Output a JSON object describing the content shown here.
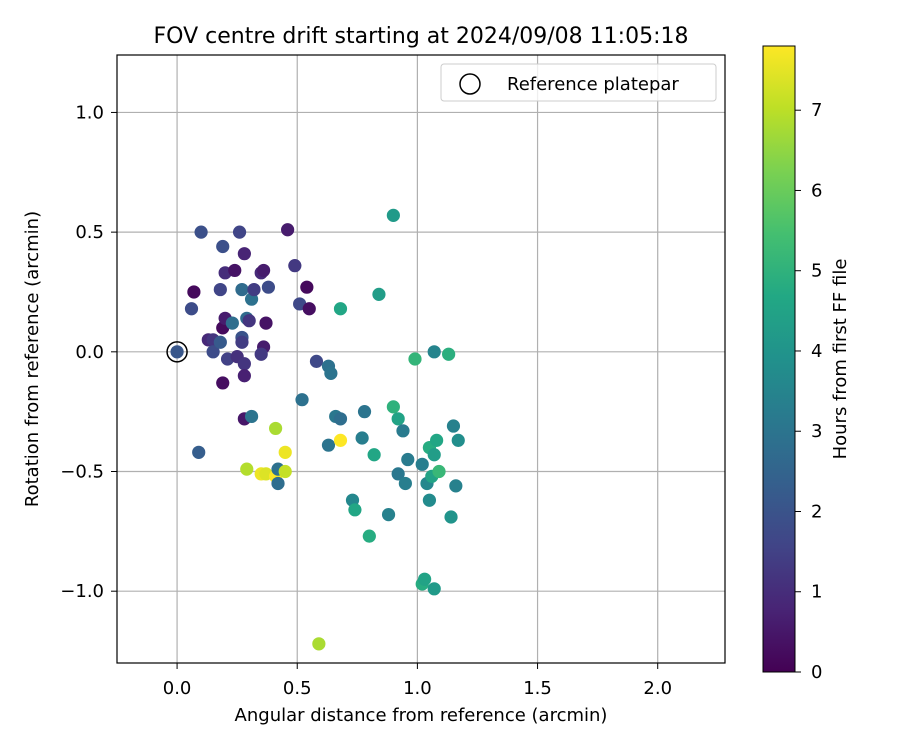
{
  "chart_data": {
    "type": "scatter",
    "title": "FOV centre drift starting at 2024/09/08 11:05:18",
    "xlabel": "Angular distance from reference (arcmin)",
    "ylabel": "Rotation from reference (arcmin)",
    "xlim": [
      -0.25,
      2.28
    ],
    "ylim": [
      -1.3,
      1.24
    ],
    "xticks": [
      0.0,
      0.5,
      1.0,
      1.5,
      2.0
    ],
    "xtick_labels": [
      "0.0",
      "0.5",
      "1.0",
      "1.5",
      "2.0"
    ],
    "yticks": [
      1.0,
      0.5,
      0.0,
      -0.5,
      -1.0
    ],
    "ytick_labels": [
      "1.0",
      "0.5",
      "0.0",
      "−0.5",
      "−1.0"
    ],
    "grid": true,
    "legend": {
      "placement": "top-right",
      "entries": [
        "Reference platepar"
      ]
    },
    "reference_point": {
      "x": 0.0,
      "y": 0.0
    },
    "colorbar": {
      "label": "Hours from first FF file",
      "colormap": "viridis",
      "range": [
        0,
        7.8
      ],
      "ticks": [
        0,
        1,
        2,
        3,
        4,
        5,
        6,
        7
      ],
      "tick_labels": [
        "0",
        "1",
        "2",
        "3",
        "4",
        "5",
        "6",
        "7"
      ]
    },
    "series": [
      {
        "points": [
          {
            "x": 0.0,
            "y": 0.0,
            "h": 2.1
          },
          {
            "x": 0.07,
            "y": 0.25,
            "h": 0.2
          },
          {
            "x": 0.06,
            "y": 0.18,
            "h": 1.8
          },
          {
            "x": 0.1,
            "y": 0.5,
            "h": 1.9
          },
          {
            "x": 0.13,
            "y": 0.05,
            "h": 0.9
          },
          {
            "x": 0.15,
            "y": 0.05,
            "h": 1.2
          },
          {
            "x": 0.15,
            "y": 0.0,
            "h": 1.8
          },
          {
            "x": 0.09,
            "y": -0.42,
            "h": 2.3
          },
          {
            "x": 0.18,
            "y": 0.26,
            "h": 1.6
          },
          {
            "x": 0.18,
            "y": 0.04,
            "h": 2.2
          },
          {
            "x": 0.19,
            "y": 0.44,
            "h": 1.9
          },
          {
            "x": 0.19,
            "y": 0.1,
            "h": 0.2
          },
          {
            "x": 0.2,
            "y": 0.14,
            "h": 0.6
          },
          {
            "x": 0.2,
            "y": 0.33,
            "h": 1.0
          },
          {
            "x": 0.19,
            "y": -0.13,
            "h": 0.3
          },
          {
            "x": 0.21,
            "y": -0.03,
            "h": 1.5
          },
          {
            "x": 0.23,
            "y": 0.12,
            "h": 2.8
          },
          {
            "x": 0.24,
            "y": 0.34,
            "h": 0.4
          },
          {
            "x": 0.26,
            "y": 0.5,
            "h": 1.6
          },
          {
            "x": 0.25,
            "y": -0.02,
            "h": 1.1
          },
          {
            "x": 0.27,
            "y": 0.26,
            "h": 2.7
          },
          {
            "x": 0.27,
            "y": 0.06,
            "h": 2.0
          },
          {
            "x": 0.27,
            "y": 0.04,
            "h": 1.4
          },
          {
            "x": 0.28,
            "y": 0.41,
            "h": 0.8
          },
          {
            "x": 0.28,
            "y": -0.05,
            "h": 1.2
          },
          {
            "x": 0.28,
            "y": -0.1,
            "h": 0.7
          },
          {
            "x": 0.28,
            "y": -0.28,
            "h": 0.5
          },
          {
            "x": 0.29,
            "y": 0.14,
            "h": 2.7
          },
          {
            "x": 0.3,
            "y": 0.13,
            "h": 1.2
          },
          {
            "x": 0.31,
            "y": 0.22,
            "h": 2.9
          },
          {
            "x": 0.32,
            "y": 0.26,
            "h": 1.4
          },
          {
            "x": 0.31,
            "y": -0.27,
            "h": 3.0
          },
          {
            "x": 0.35,
            "y": 0.33,
            "h": 0.9
          },
          {
            "x": 0.36,
            "y": 0.34,
            "h": 0.6
          },
          {
            "x": 0.36,
            "y": 0.02,
            "h": 0.6
          },
          {
            "x": 0.35,
            "y": -0.01,
            "h": 1.3
          },
          {
            "x": 0.37,
            "y": 0.12,
            "h": 0.4
          },
          {
            "x": 0.38,
            "y": 0.27,
            "h": 1.8
          },
          {
            "x": 0.46,
            "y": 0.51,
            "h": 0.6
          },
          {
            "x": 0.49,
            "y": 0.36,
            "h": 1.3
          },
          {
            "x": 0.51,
            "y": 0.2,
            "h": 1.7
          },
          {
            "x": 0.54,
            "y": 0.27,
            "h": 0.2
          },
          {
            "x": 0.55,
            "y": 0.18,
            "h": 0.3
          },
          {
            "x": 0.58,
            "y": -0.04,
            "h": 1.7
          },
          {
            "x": 0.52,
            "y": -0.2,
            "h": 2.9
          },
          {
            "x": 0.63,
            "y": -0.06,
            "h": 2.9
          },
          {
            "x": 0.64,
            "y": -0.09,
            "h": 3.0
          },
          {
            "x": 0.66,
            "y": -0.27,
            "h": 3.1
          },
          {
            "x": 0.68,
            "y": -0.28,
            "h": 2.8
          },
          {
            "x": 0.63,
            "y": -0.39,
            "h": 3.0
          },
          {
            "x": 0.68,
            "y": 0.18,
            "h": 4.6
          },
          {
            "x": 0.84,
            "y": 0.24,
            "h": 4.3
          },
          {
            "x": 0.9,
            "y": 0.57,
            "h": 4.2
          },
          {
            "x": 0.78,
            "y": -0.25,
            "h": 3.0
          },
          {
            "x": 0.77,
            "y": -0.36,
            "h": 3.3
          },
          {
            "x": 0.82,
            "y": -0.43,
            "h": 4.6
          },
          {
            "x": 0.73,
            "y": -0.62,
            "h": 3.6
          },
          {
            "x": 0.74,
            "y": -0.66,
            "h": 4.6
          },
          {
            "x": 0.88,
            "y": -0.68,
            "h": 3.4
          },
          {
            "x": 0.8,
            "y": -0.77,
            "h": 4.8
          },
          {
            "x": 0.9,
            "y": -0.23,
            "h": 5.0
          },
          {
            "x": 0.92,
            "y": -0.28,
            "h": 4.5
          },
          {
            "x": 0.94,
            "y": -0.33,
            "h": 3.2
          },
          {
            "x": 0.92,
            "y": -0.51,
            "h": 3.1
          },
          {
            "x": 0.95,
            "y": -0.55,
            "h": 3.3
          },
          {
            "x": 0.96,
            "y": -0.45,
            "h": 3.2
          },
          {
            "x": 0.99,
            "y": -0.03,
            "h": 5.1
          },
          {
            "x": 1.07,
            "y": 0.0,
            "h": 3.5
          },
          {
            "x": 1.13,
            "y": -0.01,
            "h": 4.9
          },
          {
            "x": 1.02,
            "y": -0.47,
            "h": 3.3
          },
          {
            "x": 1.05,
            "y": -0.4,
            "h": 4.8
          },
          {
            "x": 1.07,
            "y": -0.43,
            "h": 4.3
          },
          {
            "x": 1.08,
            "y": -0.37,
            "h": 4.6
          },
          {
            "x": 1.04,
            "y": -0.55,
            "h": 3.6
          },
          {
            "x": 1.06,
            "y": -0.52,
            "h": 4.5
          },
          {
            "x": 1.09,
            "y": -0.5,
            "h": 5.2
          },
          {
            "x": 1.05,
            "y": -0.62,
            "h": 3.7
          },
          {
            "x": 1.15,
            "y": -0.31,
            "h": 3.4
          },
          {
            "x": 1.17,
            "y": -0.37,
            "h": 3.8
          },
          {
            "x": 1.16,
            "y": -0.56,
            "h": 3.4
          },
          {
            "x": 1.14,
            "y": -0.69,
            "h": 4.0
          },
          {
            "x": 1.02,
            "y": -0.97,
            "h": 4.8
          },
          {
            "x": 1.03,
            "y": -0.95,
            "h": 4.5
          },
          {
            "x": 1.07,
            "y": -0.99,
            "h": 4.2
          },
          {
            "x": 0.41,
            "y": -0.32,
            "h": 6.8
          },
          {
            "x": 0.29,
            "y": -0.49,
            "h": 6.9
          },
          {
            "x": 0.35,
            "y": -0.51,
            "h": 7.6
          },
          {
            "x": 0.37,
            "y": -0.51,
            "h": 7.4
          },
          {
            "x": 0.41,
            "y": -0.52,
            "h": 7.8
          },
          {
            "x": 0.42,
            "y": -0.49,
            "h": 2.9
          },
          {
            "x": 0.42,
            "y": -0.55,
            "h": 2.8
          },
          {
            "x": 0.45,
            "y": -0.42,
            "h": 7.6
          },
          {
            "x": 0.45,
            "y": -0.5,
            "h": 7.1
          },
          {
            "x": 0.68,
            "y": -0.37,
            "h": 7.8
          },
          {
            "x": 0.59,
            "y": -1.22,
            "h": 6.8
          }
        ]
      }
    ]
  }
}
